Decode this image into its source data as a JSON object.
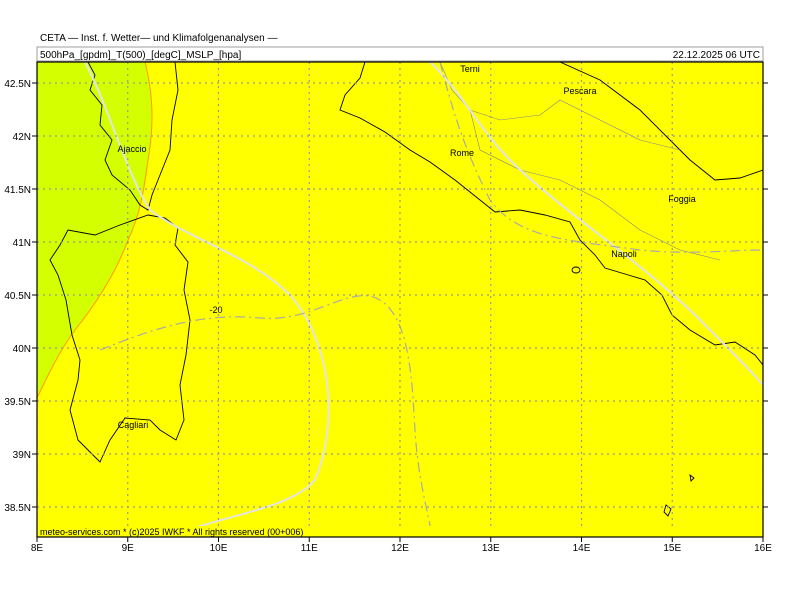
{
  "header": {
    "title": "CETA — Inst. f. Wetter— und Klimafolgenanalysen —",
    "fields": "500hPa_[gpdm]_T(500)_[degC]_MSLP_[hpa]",
    "datetime": "22.12.2025 06 UTC"
  },
  "map": {
    "lon_ticks": [
      {
        "value": 8,
        "label": "8E"
      },
      {
        "value": 9,
        "label": "9E"
      },
      {
        "value": 10,
        "label": "10E"
      },
      {
        "value": 11,
        "label": "11E"
      },
      {
        "value": 12,
        "label": "12E"
      },
      {
        "value": 13,
        "label": "13E"
      },
      {
        "value": 14,
        "label": "14E"
      },
      {
        "value": 15,
        "label": "15E"
      },
      {
        "value": 16,
        "label": "16E"
      }
    ],
    "lat_ticks": [
      {
        "value": 38.5,
        "label": "38.5N"
      },
      {
        "value": 39,
        "label": "39N"
      },
      {
        "value": 39.5,
        "label": "39.5N"
      },
      {
        "value": 40,
        "label": "40N"
      },
      {
        "value": 40.5,
        "label": "40.5N"
      },
      {
        "value": 41,
        "label": "41N"
      },
      {
        "value": 41.5,
        "label": "41.5N"
      },
      {
        "value": 42,
        "label": "42N"
      },
      {
        "value": 42.5,
        "label": "42.5N"
      }
    ],
    "places": [
      "Terni",
      "Pescara",
      "Ajaccio",
      "Rome",
      "Foggia",
      "Napoli",
      "Cagliari"
    ],
    "contour_label": "-20",
    "credit": "meteo-services.com * (c)2025 IWKF * All rights reserved (00+006)"
  }
}
